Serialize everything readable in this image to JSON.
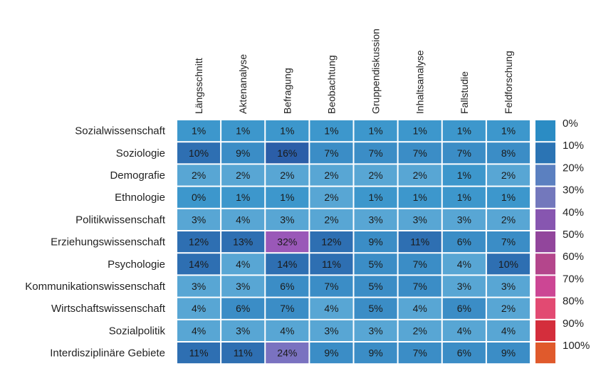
{
  "chart_data": {
    "type": "heatmap",
    "columns": [
      "Längsschnitt",
      "Aktenanalyse",
      "Befragung",
      "Beobachtung",
      "Gruppendiskussion",
      "Inhaltsanalyse",
      "Fallstudie",
      "Feldforschung"
    ],
    "rows": [
      "Sozialwissenschaft",
      "Soziologie",
      "Demografie",
      "Ethnologie",
      "Politikwissenschaft",
      "Erziehungswissenschaft",
      "Psychologie",
      "Kommunikationswissenschaft",
      "Wirtschaftswissenschaft",
      "Sozialpolitik",
      "Interdisziplinäre Gebiete"
    ],
    "values": [
      [
        1,
        1,
        1,
        1,
        1,
        1,
        1,
        1
      ],
      [
        10,
        9,
        16,
        7,
        7,
        7,
        7,
        8
      ],
      [
        2,
        2,
        2,
        2,
        2,
        2,
        1,
        2
      ],
      [
        0,
        1,
        1,
        2,
        1,
        1,
        1,
        1
      ],
      [
        3,
        4,
        3,
        2,
        3,
        3,
        3,
        2
      ],
      [
        12,
        13,
        32,
        12,
        9,
        11,
        6,
        7
      ],
      [
        14,
        4,
        14,
        11,
        5,
        7,
        4,
        10
      ],
      [
        3,
        3,
        6,
        7,
        5,
        7,
        3,
        3
      ],
      [
        4,
        6,
        7,
        4,
        5,
        4,
        6,
        2
      ],
      [
        4,
        3,
        4,
        3,
        3,
        2,
        4,
        4
      ],
      [
        11,
        11,
        24,
        9,
        9,
        7,
        6,
        9
      ]
    ],
    "value_suffix": "%",
    "legend": {
      "labels": [
        "0%",
        "10%",
        "20%",
        "30%",
        "40%",
        "50%",
        "60%",
        "70%",
        "80%",
        "90%",
        "100%"
      ],
      "colors": [
        "#2b8cc4",
        "#2b74b4",
        "#5b80c0",
        "#7378bc",
        "#8756b0",
        "#92469c",
        "#b4468c",
        "#cc4694",
        "#e24a72",
        "#d42e3c",
        "#e05a2c"
      ]
    }
  }
}
